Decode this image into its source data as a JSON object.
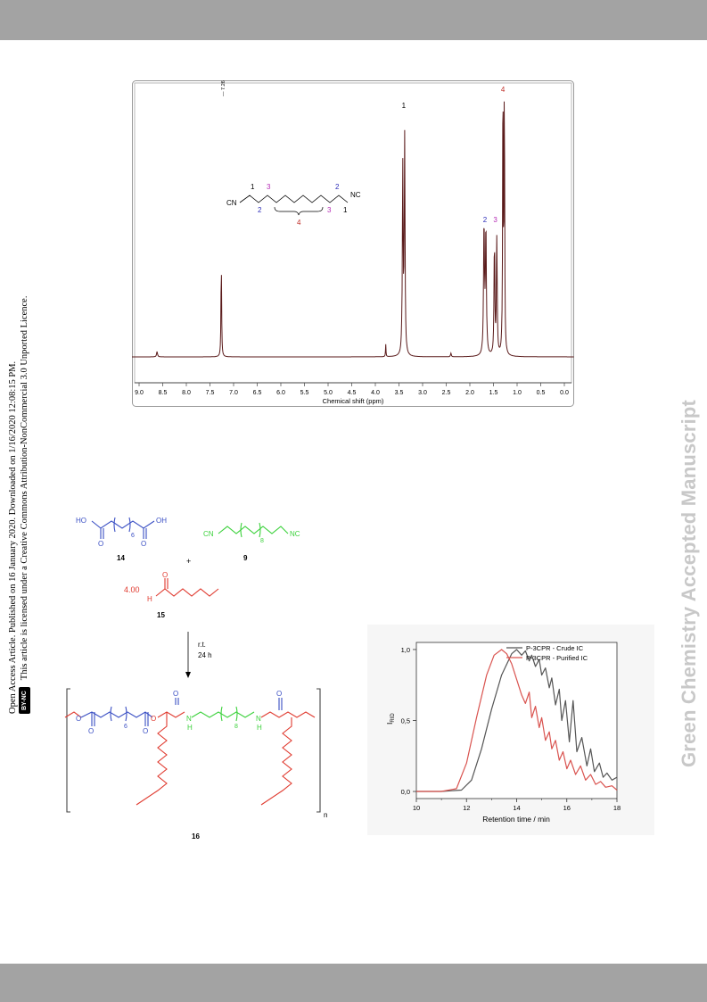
{
  "side_note": {
    "badge": "BY-NC",
    "line1": "Open Access Article. Published on 16 January 2020. Downloaded on 1/16/2020 12:08:15 PM.",
    "line2": "This article is licensed under a Creative Commons Attribution-NonCommercial 3.0 Unported Licence."
  },
  "watermark": "Green Chemistry Accepted Manuscript",
  "nmr": {
    "xlabel": "Chemical shift (ppm)",
    "ticks": [
      "9.0",
      "8.5",
      "8.0",
      "7.5",
      "7.0",
      "6.5",
      "6.0",
      "5.5",
      "5.0",
      "4.5",
      "4.0",
      "3.5",
      "3.0",
      "2.5",
      "2.0",
      "1.5",
      "1.0",
      "0.5",
      "0.0"
    ],
    "solvent_label": "7.26",
    "peak_labels": [
      {
        "text": "1",
        "ppm": 3.4,
        "color": "#000000"
      },
      {
        "text": "2",
        "ppm": 1.68,
        "color": "#2b2bb8"
      },
      {
        "text": "3",
        "ppm": 1.46,
        "color": "#b52bb5"
      },
      {
        "text": "4",
        "ppm": 1.3,
        "color": "#c0302a"
      }
    ],
    "structure": {
      "cn_left": "CN",
      "nc_right": "NC",
      "n1_left": "1",
      "n3_left": "3",
      "n2_left": "2",
      "n2_right": "2",
      "n3_right": "3",
      "n1_right": "1",
      "n4": "4"
    }
  },
  "scheme": {
    "c14": {
      "label": "14",
      "ho": "HO",
      "oh": "OH",
      "sub": "6"
    },
    "c9": {
      "label": "9",
      "cn": "CN",
      "nc": "NC",
      "sub": "8"
    },
    "plus": "+",
    "c15": {
      "label": "15",
      "eq": "4.00",
      "h": "H"
    },
    "conditions": [
      "r.t.",
      "24 h"
    ],
    "c16": {
      "label": "16",
      "sub6": "6",
      "sub8": "8",
      "nh1": "N",
      "nh1h": "H",
      "nh2": "N",
      "nh2h": "H",
      "n": "n"
    }
  },
  "chart_data": {
    "type": "line",
    "xlabel": "Retention time / min",
    "ylabel": "IRID",
    "xlim": [
      10,
      18
    ],
    "ylim": [
      -0.05,
      1.05
    ],
    "xticks": [
      "10",
      "12",
      "14",
      "16",
      "18"
    ],
    "yticks": [
      "0,0",
      "0,5",
      "1,0"
    ],
    "legend_position": "top-right",
    "series": [
      {
        "name": "P-3CPR - Crude IC",
        "color": "#555555",
        "x": [
          10.0,
          11.0,
          11.8,
          12.2,
          12.6,
          13.0,
          13.4,
          13.8,
          14.0,
          14.2,
          14.35,
          14.5,
          14.6,
          14.75,
          14.9,
          15.0,
          15.15,
          15.3,
          15.4,
          15.55,
          15.7,
          15.8,
          15.95,
          16.1,
          16.25,
          16.4,
          16.6,
          16.8,
          16.95,
          17.1,
          17.3,
          17.45,
          17.6,
          17.8,
          18.0
        ],
        "y": [
          0.0,
          0.0,
          0.01,
          0.08,
          0.3,
          0.58,
          0.82,
          0.97,
          1.0,
          0.96,
          0.99,
          0.92,
          0.96,
          0.88,
          0.93,
          0.82,
          0.87,
          0.73,
          0.8,
          0.61,
          0.72,
          0.5,
          0.64,
          0.35,
          0.64,
          0.28,
          0.38,
          0.18,
          0.3,
          0.14,
          0.2,
          0.1,
          0.13,
          0.08,
          0.1
        ]
      },
      {
        "name": "P-3CPR - Purified IC",
        "color": "#d9534f",
        "x": [
          10.0,
          11.0,
          11.6,
          12.0,
          12.4,
          12.8,
          13.1,
          13.4,
          13.6,
          13.8,
          14.0,
          14.2,
          14.35,
          14.5,
          14.6,
          14.75,
          14.9,
          15.0,
          15.15,
          15.3,
          15.4,
          15.55,
          15.7,
          15.85,
          16.0,
          16.15,
          16.35,
          16.55,
          16.75,
          16.95,
          17.15,
          17.35,
          17.55,
          17.8,
          18.0
        ],
        "y": [
          0.0,
          0.0,
          0.02,
          0.2,
          0.52,
          0.82,
          0.96,
          1.0,
          0.97,
          0.9,
          0.79,
          0.68,
          0.62,
          0.7,
          0.52,
          0.6,
          0.45,
          0.52,
          0.36,
          0.42,
          0.3,
          0.36,
          0.22,
          0.28,
          0.16,
          0.22,
          0.12,
          0.18,
          0.08,
          0.12,
          0.05,
          0.07,
          0.03,
          0.04,
          0.01
        ]
      }
    ]
  }
}
